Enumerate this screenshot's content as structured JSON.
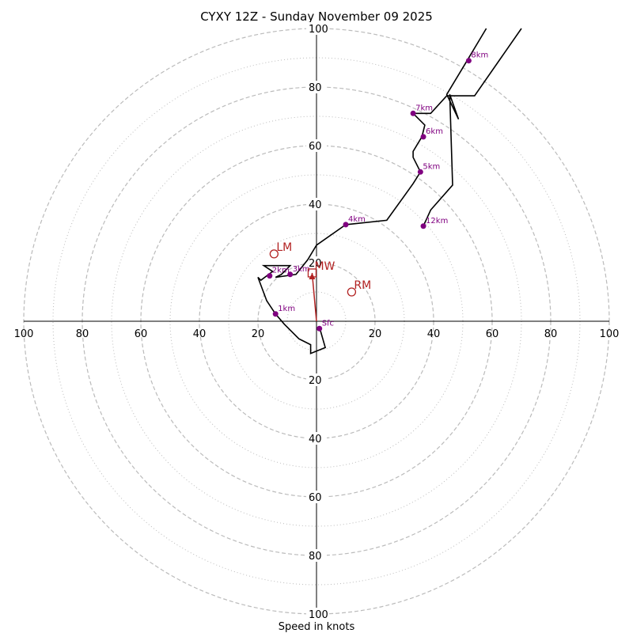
{
  "chart_data": {
    "type": "hodograph",
    "title": "CYXY 12Z - Sunday November 09 2025",
    "xlabel": "Speed in knots",
    "range": [
      -100,
      100
    ],
    "ring_major": [
      20,
      40,
      60,
      80,
      100
    ],
    "ring_minor": [
      10,
      30,
      50,
      70,
      90
    ],
    "x_tick_labels": [
      "100",
      "80",
      "60",
      "40",
      "20",
      "20",
      "40",
      "60",
      "80",
      "100"
    ],
    "y_tick_labels": [
      "100",
      "80",
      "60",
      "40",
      "20",
      "20",
      "40",
      "60",
      "80",
      "100"
    ],
    "trace": [
      [
        70,
        100
      ],
      [
        54,
        77
      ],
      [
        44.5,
        77
      ],
      [
        39,
        71
      ],
      [
        33,
        71
      ],
      [
        37,
        67
      ],
      [
        36,
        63
      ],
      [
        33,
        58
      ],
      [
        33,
        56
      ],
      [
        35.5,
        51
      ],
      [
        33,
        47
      ],
      [
        24,
        34.5
      ],
      [
        10,
        33
      ],
      [
        0,
        26
      ],
      [
        -3,
        21
      ],
      [
        -7,
        16
      ],
      [
        -14,
        15
      ],
      [
        -12,
        16
      ],
      [
        -9,
        19
      ],
      [
        -18,
        19
      ],
      [
        -15,
        17
      ],
      [
        -19,
        14
      ],
      [
        -20,
        15
      ],
      [
        -17,
        7
      ],
      [
        -14,
        2.5
      ],
      [
        -11,
        -1
      ],
      [
        -6,
        -6
      ],
      [
        -2,
        -8
      ],
      [
        -2,
        -11
      ],
      [
        3,
        -9
      ],
      [
        1,
        -2
      ]
    ],
    "upper_trace": [
      [
        36.5,
        32.5
      ],
      [
        39,
        38
      ],
      [
        46.5,
        46.5
      ],
      [
        45.5,
        77.5
      ],
      [
        48.5,
        69
      ],
      [
        44.5,
        77.5
      ],
      [
        50.5,
        87.5
      ],
      [
        58,
        100
      ]
    ],
    "height_markers": [
      {
        "label": "Sfc",
        "u": 1,
        "v": -2.5
      },
      {
        "label": "1km",
        "u": -14,
        "v": 2.5
      },
      {
        "label": "2km",
        "u": -16,
        "v": 15.5
      },
      {
        "label": "3km",
        "u": -9,
        "v": 16
      },
      {
        "label": "4km",
        "u": 10,
        "v": 33
      },
      {
        "label": "5km",
        "u": 35.5,
        "v": 51
      },
      {
        "label": "6km",
        "u": 36.5,
        "v": 63
      },
      {
        "label": "7km",
        "u": 33,
        "v": 71
      },
      {
        "label": "8km",
        "u": 52,
        "v": 89
      },
      {
        "label": "12km",
        "u": 36.5,
        "v": 32.5
      }
    ],
    "motions": [
      {
        "label": "LM",
        "u": -14.5,
        "v": 23,
        "marker": "circle"
      },
      {
        "label": "MW",
        "u": -1.5,
        "v": 16.5,
        "marker": "square"
      },
      {
        "label": "RM",
        "u": 12,
        "v": 10,
        "marker": "circle"
      }
    ],
    "shear_vector": {
      "from": [
        0,
        0
      ],
      "to": [
        -1.5,
        16.5
      ]
    }
  },
  "colors": {
    "trace": "#000000",
    "height_marker": "#800080",
    "motion": "#b22222",
    "ring": "#bbbbbb"
  }
}
